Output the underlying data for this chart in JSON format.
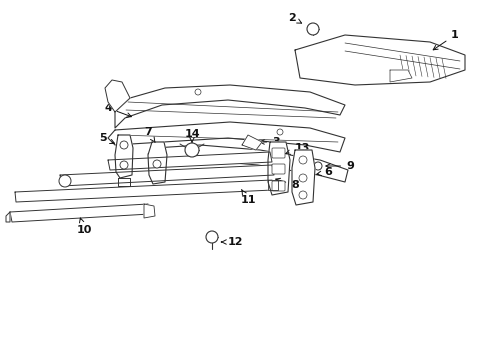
{
  "background_color": "#ffffff",
  "line_color": "#333333",
  "figsize": [
    4.89,
    3.6
  ],
  "dpi": 100
}
